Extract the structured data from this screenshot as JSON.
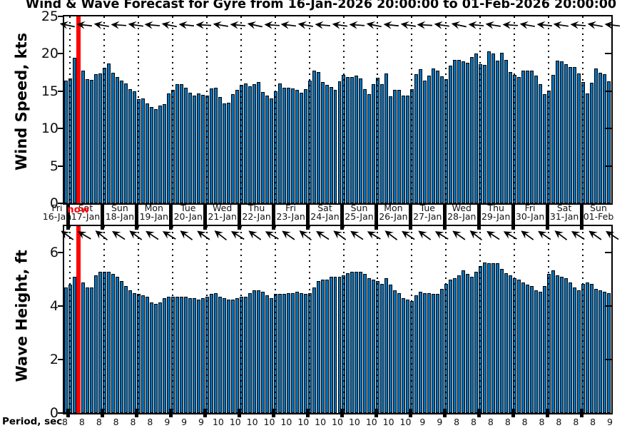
{
  "title": "Wind & Wave Forecast for Gyre from 16-Jan-2026 20:00:00 to 01-Feb-2026 20:00:00",
  "now_label": "now",
  "now_position_hours": 10,
  "colors": {
    "bar_fill": "#0072BD",
    "bar_edge": "#000000",
    "now_line": "#FF0000",
    "axis": "#000000",
    "background": "#FFFFFF"
  },
  "x_axis": {
    "total_hours": 384,
    "bar_hours": 3,
    "day_boundary_start_hour": 4,
    "day_labels": [
      {
        "weekday": "Fri",
        "date": "16-Jan"
      },
      {
        "weekday": "Sat",
        "date": "17-Jan"
      },
      {
        "weekday": "Sun",
        "date": "18-Jan"
      },
      {
        "weekday": "Mon",
        "date": "19-Jan"
      },
      {
        "weekday": "Tue",
        "date": "20-Jan"
      },
      {
        "weekday": "Wed",
        "date": "21-Jan"
      },
      {
        "weekday": "Thu",
        "date": "22-Jan"
      },
      {
        "weekday": "Fri",
        "date": "23-Jan"
      },
      {
        "weekday": "Sat",
        "date": "24-Jan"
      },
      {
        "weekday": "Sun",
        "date": "25-Jan"
      },
      {
        "weekday": "Mon",
        "date": "26-Jan"
      },
      {
        "weekday": "Tue",
        "date": "27-Jan"
      },
      {
        "weekday": "Wed",
        "date": "28-Jan"
      },
      {
        "weekday": "Thu",
        "date": "29-Jan"
      },
      {
        "weekday": "Fri",
        "date": "30-Jan"
      },
      {
        "weekday": "Sat",
        "date": "31-Jan"
      },
      {
        "weekday": "Sun",
        "date": "01-Feb"
      }
    ]
  },
  "chart_data": [
    {
      "type": "bar",
      "ylabel": "Wind Speed, kts",
      "ylim": [
        0,
        25
      ],
      "yticks": [
        0,
        5,
        10,
        15,
        20,
        25
      ],
      "grid": "vertical-dotted-daily",
      "values": [
        16.4,
        16.7,
        19.5,
        17.6,
        17.8,
        16.6,
        16.5,
        17.3,
        17.4,
        18.1,
        18.7,
        17.5,
        16.9,
        16.4,
        16.0,
        15.3,
        15.0,
        13.9,
        14.0,
        13.4,
        12.9,
        12.6,
        13.1,
        13.3,
        14.7,
        15.2,
        15.9,
        15.9,
        15.5,
        14.8,
        14.4,
        14.7,
        14.5,
        14.4,
        15.4,
        15.5,
        14.2,
        13.4,
        13.5,
        14.6,
        15.2,
        15.8,
        16.0,
        15.7,
        15.9,
        16.2,
        14.9,
        14.4,
        14.0,
        15.0,
        16.0,
        15.5,
        15.5,
        15.4,
        15.2,
        14.8,
        15.3,
        16.4,
        17.8,
        17.6,
        16.2,
        15.8,
        15.6,
        15.2,
        16.3,
        17.2,
        16.9,
        16.9,
        17.1,
        16.7,
        15.3,
        14.6,
        15.9,
        16.8,
        15.9,
        17.4,
        14.3,
        15.2,
        15.2,
        14.4,
        14.4,
        15.3,
        17.3,
        17.9,
        16.4,
        17.1,
        18.0,
        17.8,
        17.0,
        16.6,
        18.4,
        19.2,
        19.2,
        19.0,
        18.8,
        19.6,
        20.0,
        18.6,
        18.5,
        20.3,
        20.0,
        19.1,
        20.1,
        19.2,
        17.6,
        17.2,
        16.9,
        17.8,
        17.8,
        17.8,
        17.1,
        15.9,
        14.6,
        15.1,
        17.2,
        19.1,
        19.0,
        18.6,
        18.2,
        18.2,
        17.4,
        16.2,
        14.7,
        16.1,
        18.0,
        17.5,
        17.3,
        16.3
      ],
      "direction_arrows_deg": [
        12,
        6,
        10,
        4,
        8,
        5,
        11,
        6,
        3,
        9,
        5,
        12,
        4,
        7,
        10,
        5,
        8,
        4,
        11,
        6,
        9,
        3,
        8,
        12,
        5,
        9,
        4,
        10,
        6,
        8,
        5,
        10,
        7
      ]
    },
    {
      "type": "bar",
      "ylabel": "Wave Height, ft",
      "ylim": [
        0,
        7
      ],
      "yticks": [
        0,
        2,
        4,
        6
      ],
      "grid": "vertical-dotted-daily",
      "values": [
        4.7,
        4.8,
        5.1,
        5.0,
        4.9,
        4.7,
        4.7,
        5.15,
        5.3,
        5.3,
        5.3,
        5.2,
        5.1,
        4.95,
        4.75,
        4.6,
        4.5,
        4.45,
        4.4,
        4.35,
        4.15,
        4.1,
        4.15,
        4.3,
        4.35,
        4.35,
        4.35,
        4.35,
        4.35,
        4.3,
        4.3,
        4.25,
        4.3,
        4.35,
        4.45,
        4.5,
        4.35,
        4.3,
        4.25,
        4.25,
        4.3,
        4.35,
        4.35,
        4.5,
        4.6,
        4.6,
        4.55,
        4.4,
        4.3,
        4.45,
        4.45,
        4.45,
        4.5,
        4.5,
        4.55,
        4.5,
        4.45,
        4.5,
        4.7,
        4.95,
        5.0,
        5.0,
        5.1,
        5.1,
        5.1,
        5.15,
        5.25,
        5.3,
        5.3,
        5.3,
        5.2,
        5.05,
        5.0,
        4.95,
        4.85,
        5.05,
        4.8,
        4.6,
        4.5,
        4.3,
        4.25,
        4.2,
        4.4,
        4.55,
        4.5,
        4.5,
        4.45,
        4.45,
        4.65,
        4.85,
        5.0,
        5.05,
        5.15,
        5.35,
        5.2,
        5.1,
        5.3,
        5.5,
        5.65,
        5.6,
        5.6,
        5.6,
        5.4,
        5.25,
        5.15,
        5.05,
        5.0,
        4.9,
        4.8,
        4.75,
        4.6,
        4.55,
        4.75,
        5.2,
        5.35,
        5.15,
        5.1,
        5.05,
        4.9,
        4.7,
        4.6,
        4.85,
        4.9,
        4.85,
        4.65,
        4.6,
        4.55,
        4.5
      ],
      "direction_arrows_deg": [
        36,
        30,
        38,
        33,
        36,
        34,
        31,
        37,
        35,
        38,
        32,
        36,
        30,
        35,
        38,
        33,
        36,
        34,
        30,
        37,
        33,
        36,
        31,
        35,
        38,
        33,
        30,
        36,
        34,
        37,
        32,
        35,
        33
      ]
    }
  ],
  "period_row": {
    "label": "Period, sec",
    "values": [
      8,
      8,
      8,
      8,
      8,
      8,
      9,
      9,
      9,
      10,
      10,
      10,
      10,
      10,
      10,
      10,
      10,
      10,
      10,
      10,
      10,
      9,
      9,
      8,
      8,
      8,
      8,
      8,
      8,
      8,
      8,
      8,
      9
    ]
  }
}
